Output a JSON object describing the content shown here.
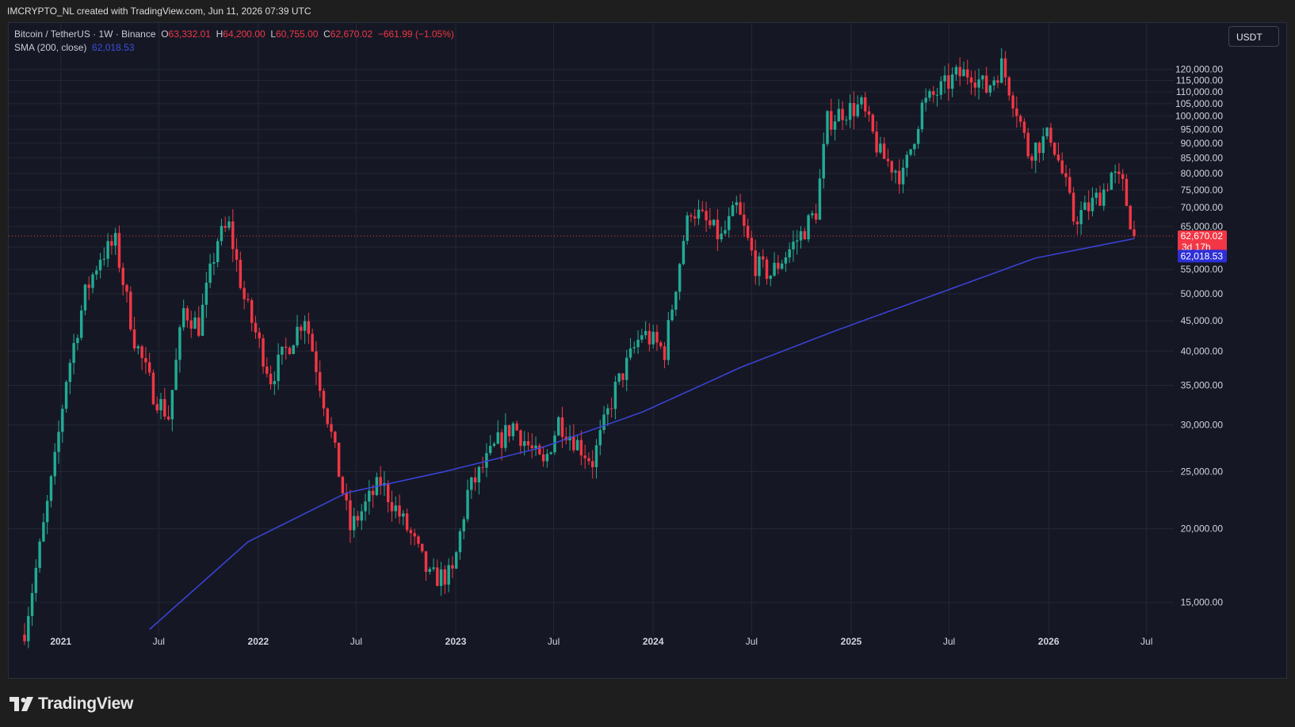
{
  "header": {
    "caption": "IMCRYPTO_NL created with TradingView.com, Jun 11, 2026 07:39 UTC"
  },
  "legend": {
    "symbol": "Bitcoin / TetherUS · 1W · Binance",
    "o_label": "O",
    "o_value": "63,332.01",
    "h_label": "H",
    "h_value": "64,200.00",
    "l_label": "L",
    "l_value": "60,755.00",
    "c_label": "C",
    "c_value": "62,670.02",
    "change": "−661.99 (−1.05%)",
    "indicator": "SMA (200, close)",
    "indicator_value": "62,018.53"
  },
  "currency": "USDT",
  "brand": {
    "name": "TradingView",
    "icon": "tradingview-logo-icon"
  },
  "colors": {
    "up": "#22ab94",
    "down": "#f23645",
    "sma": "#3d44e0",
    "background": "#151824",
    "grid": "#232736"
  },
  "chart_data": {
    "type": "candlestick",
    "timeframe": "1W",
    "ylim": [
      10500,
      127000
    ],
    "y_ticks": [
      15000,
      20000,
      25000,
      30000,
      35000,
      40000,
      45000,
      50000,
      55000,
      60000,
      65000,
      70000,
      75000,
      80000,
      85000,
      90000,
      95000,
      100000,
      105000,
      110000,
      115000,
      120000
    ],
    "y_tick_labels": [
      "15,000.00",
      "20,000.00",
      "25,000.00",
      "30,000.00",
      "35,000.00",
      "40,000.00",
      "45,000.00",
      "50,000.00",
      "55,000.00",
      "60,000.00",
      "65,000.00",
      "70,000.00",
      "75,000.00",
      "80,000.00",
      "85,000.00",
      "90,000.00",
      "95,000.00",
      "100,000.00",
      "105,000.00",
      "110,000.00",
      "115,000.00",
      "120,000.00"
    ],
    "x_ticks": [
      {
        "label": "2021",
        "date": "2021-01-01",
        "bold": true
      },
      {
        "label": "Jul",
        "date": "2021-07-01",
        "bold": false
      },
      {
        "label": "2022",
        "date": "2022-01-01",
        "bold": true
      },
      {
        "label": "Jul",
        "date": "2022-07-01",
        "bold": false
      },
      {
        "label": "2023",
        "date": "2023-01-01",
        "bold": true
      },
      {
        "label": "Jul",
        "date": "2023-07-01",
        "bold": false
      },
      {
        "label": "2024",
        "date": "2024-01-01",
        "bold": true
      },
      {
        "label": "Jul",
        "date": "2024-07-01",
        "bold": false
      },
      {
        "label": "2025",
        "date": "2025-01-01",
        "bold": true
      },
      {
        "label": "Jul",
        "date": "2025-07-01",
        "bold": false
      },
      {
        "label": "2026",
        "date": "2026-01-01",
        "bold": true
      },
      {
        "label": "Jul",
        "date": "2026-07-01",
        "bold": false
      }
    ],
    "price_anchors": [
      [
        "2020-10-26",
        13500
      ],
      [
        "2020-11-23",
        18500
      ],
      [
        "2020-12-21",
        26000
      ],
      [
        "2021-01-11",
        36000
      ],
      [
        "2021-02-15",
        50000
      ],
      [
        "2021-03-15",
        58000
      ],
      [
        "2021-04-12",
        61000
      ],
      [
        "2021-05-17",
        42000
      ],
      [
        "2021-06-21",
        34000
      ],
      [
        "2021-07-19",
        31000
      ],
      [
        "2021-08-16",
        47000
      ],
      [
        "2021-09-13",
        44000
      ],
      [
        "2021-10-18",
        62000
      ],
      [
        "2021-11-08",
        65000
      ],
      [
        "2021-12-06",
        49000
      ],
      [
        "2022-01-24",
        36000
      ],
      [
        "2022-03-28",
        46000
      ],
      [
        "2022-05-09",
        31000
      ],
      [
        "2022-06-20",
        20000
      ],
      [
        "2022-08-15",
        24000
      ],
      [
        "2022-10-10",
        19500
      ],
      [
        "2022-11-14",
        16500
      ],
      [
        "2022-12-26",
        16700
      ],
      [
        "2023-01-23",
        23000
      ],
      [
        "2023-03-20",
        28000
      ],
      [
        "2023-04-17",
        30000
      ],
      [
        "2023-06-12",
        25500
      ],
      [
        "2023-07-10",
        30500
      ],
      [
        "2023-09-11",
        26000
      ],
      [
        "2023-10-23",
        34500
      ],
      [
        "2023-12-11",
        43000
      ],
      [
        "2024-01-22",
        40000
      ],
      [
        "2024-02-26",
        62000
      ],
      [
        "2024-03-11",
        70000
      ],
      [
        "2024-05-06",
        62000
      ],
      [
        "2024-06-03",
        70000
      ],
      [
        "2024-07-08",
        56000
      ],
      [
        "2024-08-05",
        54000
      ],
      [
        "2024-09-30",
        63000
      ],
      [
        "2024-10-28",
        69000
      ],
      [
        "2024-11-18",
        98000
      ],
      [
        "2024-12-16",
        102000
      ],
      [
        "2025-01-20",
        104000
      ],
      [
        "2025-02-24",
        86000
      ],
      [
        "2025-04-07",
        79000
      ],
      [
        "2025-05-12",
        104000
      ],
      [
        "2025-07-14",
        117000
      ],
      [
        "2025-08-11",
        119000
      ],
      [
        "2025-09-08",
        111000
      ],
      [
        "2025-10-06",
        122000
      ],
      [
        "2025-11-03",
        103000
      ],
      [
        "2025-11-24",
        87000
      ],
      [
        "2026-01-05",
        93000
      ],
      [
        "2026-02-02",
        76000
      ],
      [
        "2026-02-16",
        67000
      ],
      [
        "2026-03-16",
        70000
      ],
      [
        "2026-04-13",
        75000
      ],
      [
        "2026-04-27",
        80000
      ],
      [
        "2026-05-18",
        76000
      ],
      [
        "2026-06-08",
        62670
      ]
    ],
    "sma_anchors": [
      [
        "2021-06-14",
        13500
      ],
      [
        "2021-12-13",
        19000
      ],
      [
        "2022-06-13",
        23000
      ],
      [
        "2022-12-12",
        25000
      ],
      [
        "2023-06-12",
        27500
      ],
      [
        "2023-12-11",
        31500
      ],
      [
        "2024-06-10",
        37500
      ],
      [
        "2024-12-09",
        43500
      ],
      [
        "2025-06-09",
        50000
      ],
      [
        "2025-12-08",
        57500
      ],
      [
        "2026-06-08",
        62018.53
      ]
    ],
    "last_price": {
      "value": 62670.02,
      "label": "62,670.02",
      "countdown": "3d 17h"
    },
    "sma_last": {
      "value": 62018.53,
      "label": "62,018.53"
    },
    "sma": {
      "name": "SMA (200, close)",
      "period": 200
    },
    "grid": true
  }
}
